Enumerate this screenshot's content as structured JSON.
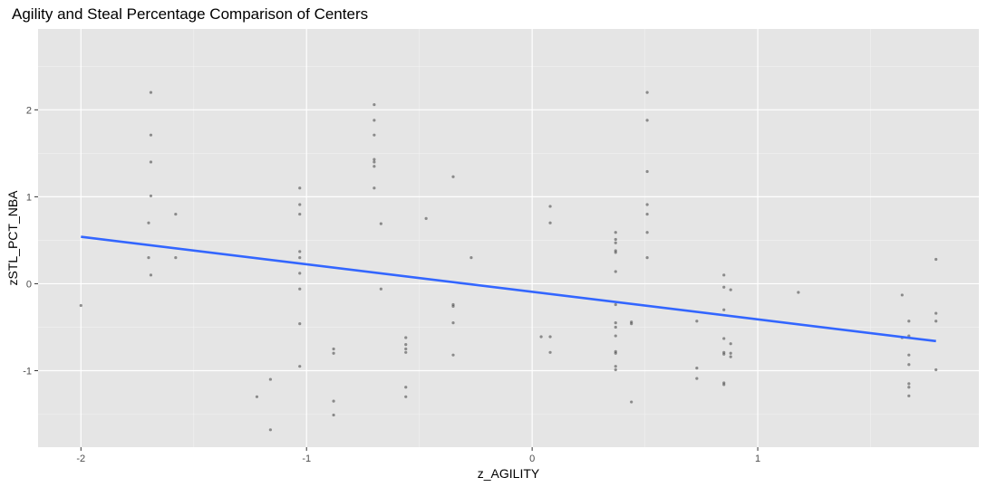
{
  "chart_data": {
    "type": "scatter",
    "title": "Agility and Steal Percentage Comparison of Centers",
    "xlabel": "z_AGILITY",
    "ylabel": "zSTL_PCT_NBA",
    "xlim": [
      -2.19,
      1.98
    ],
    "ylim": [
      -1.88,
      2.93
    ],
    "x_ticks": [
      -2,
      -1,
      0,
      1
    ],
    "x_tick_labels": [
      "-2",
      "-1",
      "0",
      "1"
    ],
    "y_ticks": [
      -1,
      0,
      1,
      2
    ],
    "y_tick_labels": [
      "-1",
      "0",
      "1",
      "2"
    ],
    "grid": true,
    "colors": {
      "panel_bg": "#e5e5e5",
      "grid_major": "#ffffff",
      "grid_minor": "#f2f2f2",
      "points": "#4d4d4d",
      "fit_line": "#3366ff"
    },
    "points": [
      {
        "x": -2.0,
        "y": -0.25
      },
      {
        "x": -1.69,
        "y": 2.2
      },
      {
        "x": -1.69,
        "y": 1.71
      },
      {
        "x": -1.69,
        "y": 1.4
      },
      {
        "x": -1.69,
        "y": 1.01
      },
      {
        "x": -1.69,
        "y": 0.1
      },
      {
        "x": -1.7,
        "y": 0.7
      },
      {
        "x": -1.7,
        "y": 0.3
      },
      {
        "x": -1.58,
        "y": 0.8
      },
      {
        "x": -1.58,
        "y": 0.3
      },
      {
        "x": -1.22,
        "y": -1.3
      },
      {
        "x": -1.16,
        "y": -1.1
      },
      {
        "x": -1.16,
        "y": -1.68
      },
      {
        "x": -1.03,
        "y": 1.1
      },
      {
        "x": -1.03,
        "y": 0.91
      },
      {
        "x": -1.03,
        "y": 0.8
      },
      {
        "x": -1.03,
        "y": 0.37
      },
      {
        "x": -1.03,
        "y": 0.3
      },
      {
        "x": -1.03,
        "y": 0.12
      },
      {
        "x": -1.03,
        "y": -0.06
      },
      {
        "x": -1.03,
        "y": -0.46
      },
      {
        "x": -1.03,
        "y": -0.95
      },
      {
        "x": -0.88,
        "y": -0.75
      },
      {
        "x": -0.88,
        "y": -0.8
      },
      {
        "x": -0.88,
        "y": -1.35
      },
      {
        "x": -0.88,
        "y": -1.51
      },
      {
        "x": -0.7,
        "y": 2.06
      },
      {
        "x": -0.7,
        "y": 1.88
      },
      {
        "x": -0.7,
        "y": 1.71
      },
      {
        "x": -0.7,
        "y": 1.43
      },
      {
        "x": -0.7,
        "y": 1.4
      },
      {
        "x": -0.7,
        "y": 1.35
      },
      {
        "x": -0.7,
        "y": 1.1
      },
      {
        "x": -0.67,
        "y": 0.69
      },
      {
        "x": -0.67,
        "y": -0.06
      },
      {
        "x": -0.56,
        "y": -0.62
      },
      {
        "x": -0.56,
        "y": -0.7
      },
      {
        "x": -0.56,
        "y": -0.75
      },
      {
        "x": -0.56,
        "y": -0.79
      },
      {
        "x": -0.56,
        "y": -1.19
      },
      {
        "x": -0.56,
        "y": -1.3
      },
      {
        "x": -0.47,
        "y": 0.75
      },
      {
        "x": -0.35,
        "y": 1.23
      },
      {
        "x": -0.35,
        "y": -0.24
      },
      {
        "x": -0.35,
        "y": -0.26
      },
      {
        "x": -0.35,
        "y": -0.45
      },
      {
        "x": -0.35,
        "y": -0.82
      },
      {
        "x": -0.27,
        "y": 0.3
      },
      {
        "x": 0.04,
        "y": -0.61
      },
      {
        "x": 0.08,
        "y": 0.89
      },
      {
        "x": 0.08,
        "y": 0.7
      },
      {
        "x": 0.08,
        "y": -0.61
      },
      {
        "x": 0.08,
        "y": -0.79
      },
      {
        "x": 0.37,
        "y": 0.59
      },
      {
        "x": 0.37,
        "y": 0.51
      },
      {
        "x": 0.37,
        "y": 0.47
      },
      {
        "x": 0.37,
        "y": 0.38
      },
      {
        "x": 0.37,
        "y": 0.36
      },
      {
        "x": 0.37,
        "y": 0.14
      },
      {
        "x": 0.37,
        "y": -0.24
      },
      {
        "x": 0.37,
        "y": -0.45
      },
      {
        "x": 0.37,
        "y": -0.5
      },
      {
        "x": 0.37,
        "y": -0.6
      },
      {
        "x": 0.37,
        "y": -0.78
      },
      {
        "x": 0.37,
        "y": -0.8
      },
      {
        "x": 0.37,
        "y": -0.95
      },
      {
        "x": 0.37,
        "y": -0.99
      },
      {
        "x": 0.44,
        "y": -0.44
      },
      {
        "x": 0.44,
        "y": -0.46
      },
      {
        "x": 0.44,
        "y": -1.36
      },
      {
        "x": 0.51,
        "y": 2.2
      },
      {
        "x": 0.51,
        "y": 1.88
      },
      {
        "x": 0.51,
        "y": 1.29
      },
      {
        "x": 0.51,
        "y": 0.91
      },
      {
        "x": 0.51,
        "y": 0.8
      },
      {
        "x": 0.51,
        "y": 0.59
      },
      {
        "x": 0.51,
        "y": 0.3
      },
      {
        "x": 0.73,
        "y": -0.43
      },
      {
        "x": 0.73,
        "y": -0.97
      },
      {
        "x": 0.73,
        "y": -1.09
      },
      {
        "x": 0.85,
        "y": 0.1
      },
      {
        "x": 0.85,
        "y": -0.04
      },
      {
        "x": 0.85,
        "y": -0.3
      },
      {
        "x": 0.85,
        "y": -0.63
      },
      {
        "x": 0.85,
        "y": -0.79
      },
      {
        "x": 0.85,
        "y": -0.81
      },
      {
        "x": 0.85,
        "y": -1.14
      },
      {
        "x": 0.85,
        "y": -1.16
      },
      {
        "x": 0.88,
        "y": -0.07
      },
      {
        "x": 0.88,
        "y": -0.69
      },
      {
        "x": 0.88,
        "y": -0.8
      },
      {
        "x": 0.88,
        "y": -0.84
      },
      {
        "x": 1.18,
        "y": -0.1
      },
      {
        "x": 1.64,
        "y": -0.13
      },
      {
        "x": 1.64,
        "y": -0.62
      },
      {
        "x": 1.67,
        "y": -0.43
      },
      {
        "x": 1.67,
        "y": -0.6
      },
      {
        "x": 1.67,
        "y": -0.82
      },
      {
        "x": 1.67,
        "y": -0.93
      },
      {
        "x": 1.67,
        "y": -1.15
      },
      {
        "x": 1.67,
        "y": -1.19
      },
      {
        "x": 1.67,
        "y": -1.29
      },
      {
        "x": 1.79,
        "y": 0.28
      },
      {
        "x": 1.79,
        "y": -0.34
      },
      {
        "x": 1.79,
        "y": -0.43
      },
      {
        "x": 1.79,
        "y": -0.99
      }
    ],
    "fit_line": {
      "type": "linear",
      "x": [
        -2.0,
        1.79
      ],
      "y": [
        0.54,
        -0.66
      ]
    }
  }
}
